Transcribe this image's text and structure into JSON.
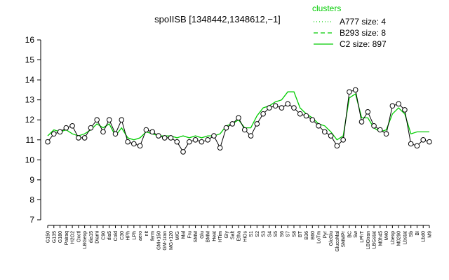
{
  "chart_data": {
    "type": "line",
    "title": "spoIISB [1348442,1348612,−1]",
    "categories": [
      "G150",
      "G135",
      "G180",
      "Pairaq",
      "H2O2",
      "Oxctl",
      "LBGexp",
      "dia15",
      "Diami",
      "C90",
      "dia5",
      "Cold",
      "C30",
      "HPh",
      "LPh",
      "aero",
      "nit",
      "ferm",
      "GM+150",
      "GM-1ran",
      "MG+120",
      "M/G",
      "Mal",
      "Fru",
      "SMM",
      "Glu",
      "BMM",
      "Heat",
      "HTim",
      "Gly",
      "Salt",
      "Etha",
      "HiOs",
      "S1",
      "S2",
      "S3",
      "S4",
      "S5",
      "S6",
      "S7",
      "S8",
      "BT",
      "B36",
      "B60",
      "LoTm",
      "Pyr",
      "GlcGlu",
      "GlucoMal",
      "SMMPr",
      "BC",
      "Sw",
      "LPhT",
      "LBGtran",
      "LBGstat",
      "M0h45",
      "M40",
      "Lbexp",
      "M0290",
      "Lbstat",
      "Sb",
      "BI",
      "Lbd0",
      "M9"
    ],
    "series": [
      {
        "color": "#000000",
        "values": [
          10.9,
          11.3,
          11.4,
          11.6,
          11.7,
          11.1,
          11.1,
          11.6,
          12.0,
          11.4,
          12.0,
          11.3,
          12.0,
          10.9,
          10.8,
          10.7,
          11.5,
          11.4,
          11.2,
          11.1,
          11.1,
          10.9,
          10.4,
          10.9,
          11.0,
          10.9,
          11.0,
          11.2,
          10.6,
          11.6,
          11.8,
          12.1,
          11.5,
          11.2,
          11.8,
          12.3,
          12.6,
          12.7,
          12.6,
          12.8,
          12.6,
          12.3,
          12.2,
          12.0,
          11.7,
          11.4,
          11.2,
          10.7,
          11.0,
          13.4,
          13.5,
          11.9,
          12.4,
          11.7,
          11.5,
          11.3,
          12.7,
          12.8,
          12.5,
          10.8,
          10.7,
          11.0,
          10.9
        ]
      },
      {
        "name": "C2 size: 897",
        "color": "#00cc00",
        "values": [
          11.2,
          11.5,
          11.4,
          11.5,
          11.3,
          11.2,
          11.3,
          11.5,
          11.8,
          11.6,
          11.8,
          11.2,
          11.6,
          11.1,
          11.0,
          11.1,
          11.4,
          11.3,
          11.2,
          11.2,
          11.2,
          11.1,
          11.2,
          11.1,
          11.2,
          11.1,
          11.2,
          11.2,
          11.3,
          11.7,
          11.8,
          12.0,
          11.6,
          11.6,
          12.2,
          12.6,
          12.7,
          12.9,
          13.0,
          13.4,
          13.4,
          12.6,
          12.3,
          12.1,
          11.8,
          11.7,
          11.4,
          11.0,
          11.2,
          13.1,
          13.3,
          12.1,
          12.1,
          11.6,
          11.4,
          11.5,
          12.3,
          12.6,
          12.3,
          11.3,
          11.4,
          11.4,
          11.4
        ]
      }
    ],
    "legend": {
      "title": "clusters",
      "color": "#00cc00",
      "entries": [
        {
          "name": "A777 size: 4",
          "dash": "1,3"
        },
        {
          "name": "B293 size: 8",
          "dash": "6,4"
        },
        {
          "name": "C2 size: 897",
          "dash": "none"
        }
      ]
    },
    "ylim": [
      7,
      16
    ],
    "yticks": [
      7,
      8,
      9,
      10,
      11,
      12,
      13,
      14,
      15,
      16
    ]
  }
}
